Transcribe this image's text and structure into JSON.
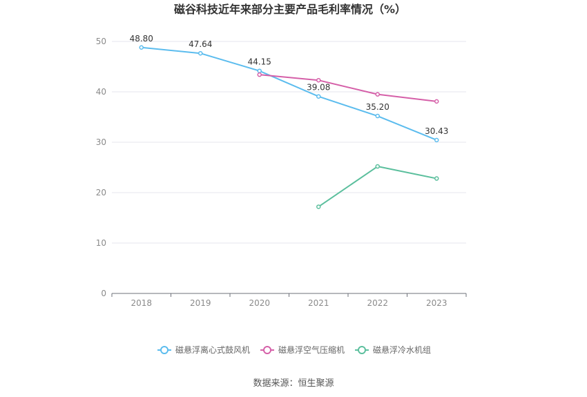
{
  "chart_data": {
    "type": "line",
    "title": "磁谷科技近年来部分主要产品毛利率情况（%）",
    "categories": [
      "2018",
      "2019",
      "2020",
      "2021",
      "2022",
      "2023"
    ],
    "ylim": [
      0,
      50
    ],
    "yticks": [
      0,
      10,
      20,
      30,
      40,
      50
    ],
    "grid": true,
    "legend_position": "bottom",
    "series": [
      {
        "name": "磁悬浮离心式鼓风机",
        "color": "#5bbcee",
        "values": [
          48.8,
          47.64,
          44.15,
          39.08,
          35.2,
          30.43
        ],
        "labels": [
          "48.80",
          "47.64",
          "44.15",
          "39.08",
          "35.20",
          "30.43"
        ]
      },
      {
        "name": "磁悬浮空气压缩机",
        "color": "#d55fa8",
        "values": [
          null,
          null,
          43.4,
          42.3,
          39.5,
          38.1
        ]
      },
      {
        "name": "磁悬浮冷水机组",
        "color": "#5bbf9d",
        "values": [
          null,
          null,
          null,
          17.2,
          25.2,
          22.8
        ]
      }
    ],
    "source": "数据来源：恒生聚源"
  }
}
